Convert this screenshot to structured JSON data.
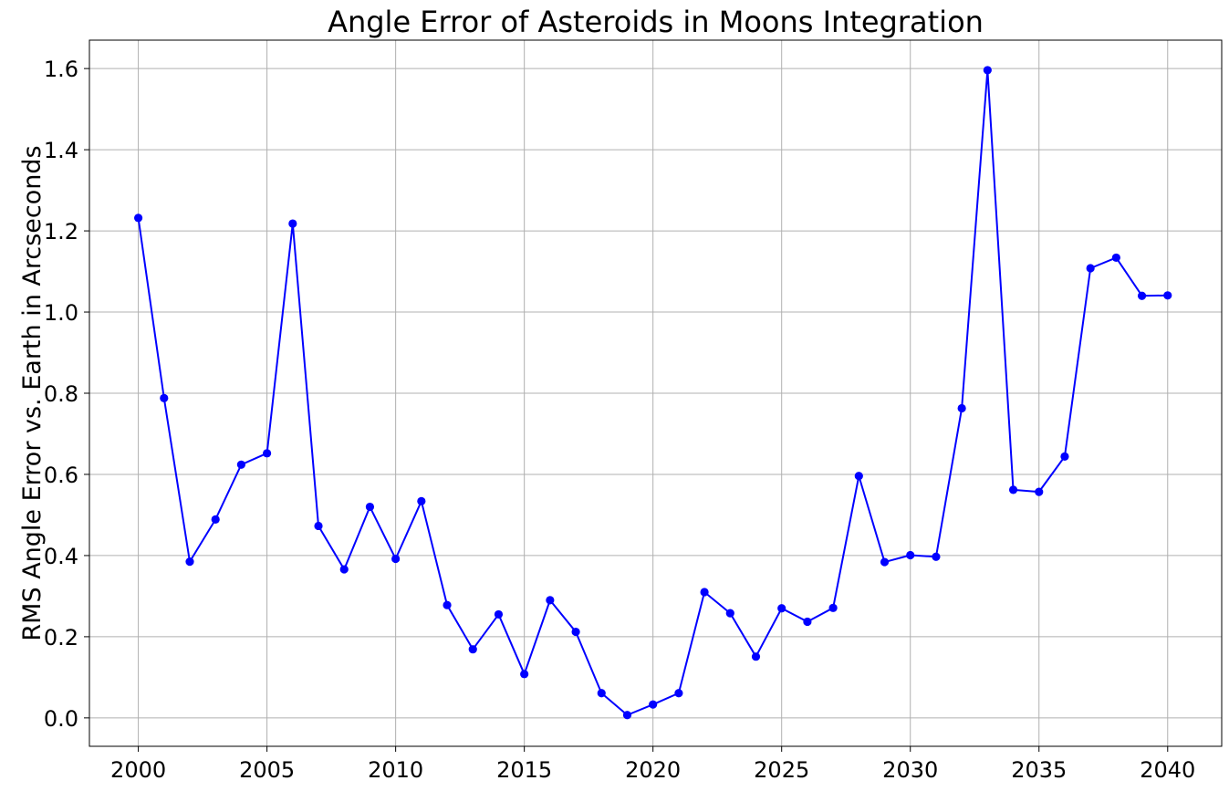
{
  "chart_data": {
    "type": "line",
    "title": "Angle Error of Asteroids in Moons Integration",
    "xlabel": "",
    "ylabel": "RMS Angle Error vs. Earth in Arcseconds",
    "xlim": [
      1998.1,
      2042.1
    ],
    "ylim": [
      -0.07,
      1.67
    ],
    "xticks": [
      2000,
      2005,
      2010,
      2015,
      2020,
      2025,
      2030,
      2035,
      2040
    ],
    "xtick_labels": [
      "2000",
      "2005",
      "2010",
      "2015",
      "2020",
      "2025",
      "2030",
      "2035",
      "2040"
    ],
    "yticks": [
      0.0,
      0.2,
      0.4,
      0.6,
      0.8,
      1.0,
      1.2,
      1.4,
      1.6
    ],
    "ytick_labels": [
      "0.0",
      "0.2",
      "0.4",
      "0.6",
      "0.8",
      "1.0",
      "1.2",
      "1.4",
      "1.6"
    ],
    "grid": true,
    "legend": "none",
    "series": [
      {
        "color": "#0000ff",
        "marker": "circle",
        "x": [
          2000,
          2001,
          2002,
          2003,
          2004,
          2005,
          2006,
          2007,
          2008,
          2009,
          2010,
          2011,
          2012,
          2013,
          2014,
          2015,
          2016,
          2017,
          2018,
          2019,
          2020,
          2021,
          2022,
          2023,
          2024,
          2025,
          2026,
          2027,
          2028,
          2029,
          2030,
          2031,
          2032,
          2033,
          2034,
          2035,
          2036,
          2037,
          2038,
          2039,
          2040
        ],
        "y": [
          1.232,
          0.788,
          0.385,
          0.489,
          0.624,
          0.652,
          1.218,
          0.473,
          0.366,
          0.52,
          0.392,
          0.534,
          0.278,
          0.169,
          0.255,
          0.108,
          0.29,
          0.212,
          0.061,
          0.007,
          0.033,
          0.061,
          0.31,
          0.258,
          0.151,
          0.27,
          0.237,
          0.271,
          0.596,
          0.384,
          0.401,
          0.397,
          0.763,
          1.596,
          0.562,
          0.557,
          0.644,
          1.108,
          1.134,
          1.04,
          1.041
        ]
      }
    ]
  }
}
